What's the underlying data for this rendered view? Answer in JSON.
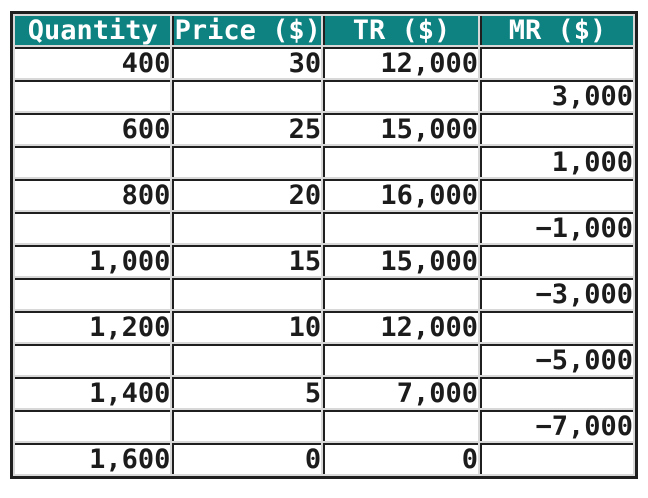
{
  "table": {
    "columns": [
      "Quantity",
      "Price ($)",
      "TR ($)",
      "MR ($)"
    ],
    "rows": [
      [
        "400",
        "30",
        "12,000",
        ""
      ],
      [
        "",
        "",
        "",
        "3,000"
      ],
      [
        "600",
        "25",
        "15,000",
        ""
      ],
      [
        "",
        "",
        "",
        "1,000"
      ],
      [
        "800",
        "20",
        "16,000",
        ""
      ],
      [
        "",
        "",
        "",
        "−1,000"
      ],
      [
        "1,000",
        "15",
        "15,000",
        ""
      ],
      [
        "",
        "",
        "",
        "−3,000"
      ],
      [
        "1,200",
        "10",
        "12,000",
        ""
      ],
      [
        "",
        "",
        "",
        "−5,000"
      ],
      [
        "1,400",
        "5",
        "7,000",
        ""
      ],
      [
        "",
        "",
        "",
        "−7,000"
      ],
      [
        "1,600",
        "0",
        "0",
        ""
      ]
    ]
  },
  "chart_data": {
    "type": "table",
    "title": "",
    "columns": [
      "Quantity",
      "Price ($)",
      "TR ($)",
      "MR ($)"
    ],
    "rows": [
      [
        "400",
        "30",
        "12,000",
        ""
      ],
      [
        "",
        "",
        "",
        "3,000"
      ],
      [
        "600",
        "25",
        "15,000",
        ""
      ],
      [
        "",
        "",
        "",
        "1,000"
      ],
      [
        "800",
        "20",
        "16,000",
        ""
      ],
      [
        "",
        "",
        "",
        "−1,000"
      ],
      [
        "1,000",
        "15",
        "15,000",
        ""
      ],
      [
        "",
        "",
        "",
        "−3,000"
      ],
      [
        "1,200",
        "10",
        "12,000",
        ""
      ],
      [
        "",
        "",
        "",
        "−5,000"
      ],
      [
        "1,400",
        "5",
        "7,000",
        ""
      ],
      [
        "",
        "",
        "",
        "−7,000"
      ],
      [
        "1,600",
        "0",
        "0",
        ""
      ]
    ],
    "series": {
      "quantity": [
        400,
        600,
        800,
        1000,
        1200,
        1400,
        1600
      ],
      "price": [
        30,
        25,
        20,
        15,
        10,
        5,
        0
      ],
      "total_revenue": [
        12000,
        15000,
        16000,
        15000,
        12000,
        7000,
        0
      ],
      "marginal_revenue": [
        3000,
        1000,
        -1000,
        -3000,
        -5000,
        -7000
      ]
    }
  },
  "colors": {
    "header_bg": "#0E8181",
    "header_text": "#FFFFFF",
    "border": "#1F1F1F",
    "grid_gap": "#D8D8D8",
    "cell_bg": "#FFFFFF",
    "cell_text": "#1C1C1C"
  }
}
